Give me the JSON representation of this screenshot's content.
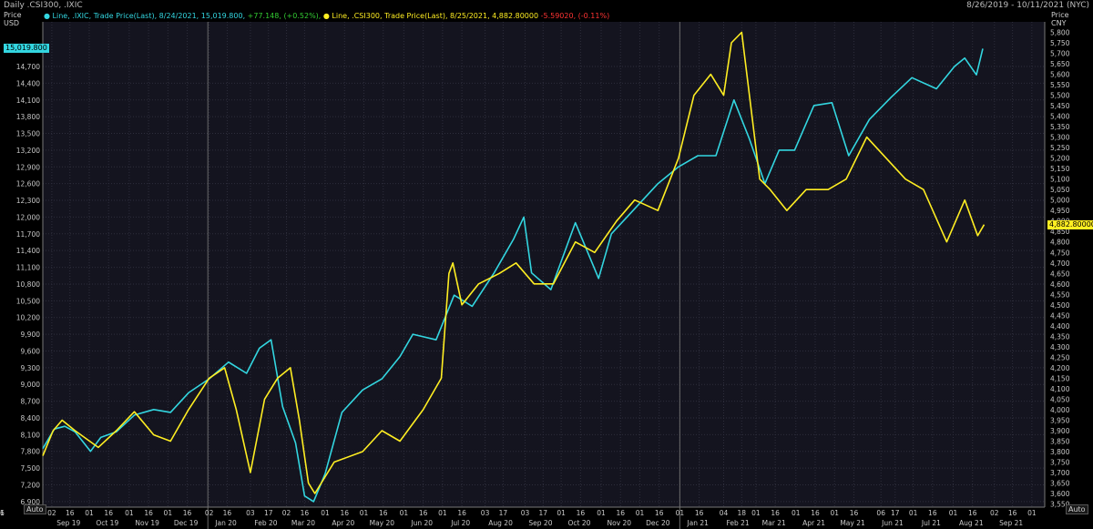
{
  "header": {
    "title": "Daily .CSI300, .IXIC",
    "date_range": "8/26/2019 - 10/11/2021 (NYC)"
  },
  "legend": {
    "ixic": {
      "prefix": "Line, .IXIC, Trade Price(Last), 8/24/2021, 15,019.800,",
      "change": "+77.148, (+0.52%),",
      "color": "#33d6e0",
      "change_color": "#33cc33"
    },
    "csi": {
      "prefix": "Line, .CSI300, Trade Price(Last), 8/25/2021, 4,882.80000",
      "change": "-5.59020, (-0.11%)",
      "color": "#ffee22",
      "change_color": "#ff3333"
    }
  },
  "left_axis": {
    "label_line1": "Price",
    "label_line2": "USD",
    "last_value": "15,019.800"
  },
  "right_axis": {
    "label_line1": "Price",
    "label_line2": "CNY",
    "last_value": "4,882.80000"
  },
  "auto_button": "Auto",
  "chart_data": {
    "type": "line",
    "x_start": "2019-08-26",
    "x_end": "2021-10-11",
    "left_ylim": [
      6800,
      15500
    ],
    "right_ylim": [
      3535,
      5850
    ],
    "left_ticks": [
      "6,900",
      "7,200",
      "7,500",
      "7,800",
      "8,100",
      "8,400",
      "8,700",
      "9,000",
      "9,300",
      "9,600",
      "9,900",
      "10,200",
      "10,500",
      "10,800",
      "11,100",
      "11,400",
      "11,700",
      "12,000",
      "12,300",
      "12,600",
      "12,900",
      "13,200",
      "13,500",
      "13,800",
      "14,100",
      "14,400",
      "14,700"
    ],
    "left_tick_values": [
      6900,
      7200,
      7500,
      7800,
      8100,
      8400,
      8700,
      9000,
      9300,
      9600,
      9900,
      10200,
      10500,
      10800,
      11100,
      11400,
      11700,
      12000,
      12300,
      12600,
      12900,
      13200,
      13500,
      13800,
      14100,
      14400,
      14700
    ],
    "right_tick_values": [
      3550,
      3600,
      3650,
      3700,
      3750,
      3800,
      3850,
      3900,
      3950,
      4000,
      4050,
      4100,
      4150,
      4200,
      4250,
      4300,
      4350,
      4400,
      4450,
      4500,
      4550,
      4600,
      4650,
      4700,
      4750,
      4800,
      4850,
      4900,
      4950,
      5000,
      5050,
      5100,
      5150,
      5200,
      5250,
      5300,
      5350,
      5400,
      5450,
      5500,
      5550,
      5600,
      5650,
      5700,
      5750,
      5800
    ],
    "right_ticks": [
      "3,550",
      "3,600",
      "3,650",
      "3,700",
      "3,750",
      "3,800",
      "3,850",
      "3,900",
      "3,950",
      "4,000",
      "4,050",
      "4,100",
      "4,150",
      "4,200",
      "4,250",
      "4,300",
      "4,350",
      "4,400",
      "4,450",
      "4,500",
      "4,550",
      "4,600",
      "4,650",
      "4,700",
      "4,750",
      "4,800",
      "4,850",
      "4,900",
      "4,950",
      "5,000",
      "5,050",
      "5,100",
      "5,150",
      "5,200",
      "5,250",
      "5,300",
      "5,350",
      "5,400",
      "5,450",
      "5,500",
      "5,550",
      "5,600",
      "5,650",
      "5,700",
      "5,750",
      "5,800"
    ],
    "day_ticks": [
      "02",
      "16",
      "01",
      "16",
      "01",
      "16",
      "01",
      "16",
      "02",
      "16",
      "03",
      "17",
      "02",
      "16",
      "01",
      "16",
      "01",
      "16",
      "01",
      "16",
      "01",
      "16",
      "03",
      "17",
      "03",
      "17",
      "01",
      "16",
      "01",
      "16",
      "01",
      "16",
      "01",
      "16",
      "04",
      "18",
      "01",
      "16",
      "01",
      "16",
      "01",
      "16",
      "06",
      "17",
      "01",
      "16",
      "01",
      "16",
      "02",
      "16",
      "01",
      "16",
      "01",
      "16"
    ],
    "day_tick_dates": [
      "2019-09-02",
      "2019-09-16",
      "2019-10-01",
      "2019-10-16",
      "2019-11-01",
      "2019-11-16",
      "2019-12-01",
      "2019-12-16",
      "2020-01-02",
      "2020-01-16",
      "2020-02-03",
      "2020-02-17",
      "2020-03-02",
      "2020-03-16",
      "2020-04-01",
      "2020-04-16",
      "2020-05-01",
      "2020-05-16",
      "2020-06-01",
      "2020-06-16",
      "2020-07-01",
      "2020-07-16",
      "2020-08-03",
      "2020-08-17",
      "2020-09-03",
      "2020-09-17",
      "2020-10-01",
      "2020-10-16",
      "2020-11-01",
      "2020-11-16",
      "2020-12-01",
      "2020-12-16",
      "2021-01-01",
      "2021-01-16",
      "2021-02-04",
      "2021-02-18",
      "2021-03-01",
      "2021-03-16",
      "2021-04-01",
      "2021-04-16",
      "2021-05-01",
      "2021-05-16",
      "2021-06-06",
      "2021-06-17",
      "2021-07-01",
      "2021-07-16",
      "2021-08-01",
      "2021-08-16",
      "2021-09-02",
      "2021-09-16",
      "2021-10-01",
      "2021-10-16"
    ],
    "month_labels": [
      "Sep 19",
      "Oct 19",
      "Nov 19",
      "Dec 19",
      "Jan 20",
      "Feb 20",
      "Mar 20",
      "Apr 20",
      "May 20",
      "Jun 20",
      "Jul 20",
      "Aug 20",
      "Sep 20",
      "Oct 20",
      "Nov 20",
      "Dec 20",
      "Jan 21",
      "Feb 21",
      "Mar 21",
      "Apr 21",
      "May 21",
      "Jun 21",
      "Jul 21",
      "Aug 21",
      "Sep 21"
    ],
    "month_label_dates": [
      "2019-09-15",
      "2019-10-15",
      "2019-11-15",
      "2019-12-15",
      "2020-01-15",
      "2020-02-15",
      "2020-03-15",
      "2020-04-15",
      "2020-05-15",
      "2020-06-15",
      "2020-07-15",
      "2020-08-15",
      "2020-09-15",
      "2020-10-15",
      "2020-11-15",
      "2020-12-15",
      "2021-01-15",
      "2021-02-15",
      "2021-03-15",
      "2021-04-15",
      "2021-05-15",
      "2021-06-15",
      "2021-07-15",
      "2021-08-15",
      "2021-09-15"
    ],
    "year_separator_dates": [
      "2020-01-01",
      "2021-01-01"
    ],
    "series": [
      {
        "name": ".IXIC",
        "axis": "left",
        "color": "#33d6e0",
        "points": [
          [
            "2019-08-26",
            7850
          ],
          [
            "2019-09-04",
            8200
          ],
          [
            "2019-09-12",
            8250
          ],
          [
            "2019-09-20",
            8150
          ],
          [
            "2019-10-02",
            7800
          ],
          [
            "2019-10-10",
            8050
          ],
          [
            "2019-10-22",
            8150
          ],
          [
            "2019-11-05",
            8450
          ],
          [
            "2019-11-20",
            8550
          ],
          [
            "2019-12-03",
            8500
          ],
          [
            "2019-12-17",
            8850
          ],
          [
            "2020-01-02",
            9100
          ],
          [
            "2020-01-17",
            9400
          ],
          [
            "2020-01-31",
            9200
          ],
          [
            "2020-02-10",
            9650
          ],
          [
            "2020-02-19",
            9800
          ],
          [
            "2020-02-28",
            8600
          ],
          [
            "2020-03-09",
            7950
          ],
          [
            "2020-03-16",
            7000
          ],
          [
            "2020-03-23",
            6900
          ],
          [
            "2020-04-01",
            7400
          ],
          [
            "2020-04-14",
            8500
          ],
          [
            "2020-04-30",
            8900
          ],
          [
            "2020-05-15",
            9100
          ],
          [
            "2020-05-29",
            9500
          ],
          [
            "2020-06-08",
            9900
          ],
          [
            "2020-06-26",
            9800
          ],
          [
            "2020-07-10",
            10600
          ],
          [
            "2020-07-24",
            10400
          ],
          [
            "2020-08-10",
            11000
          ],
          [
            "2020-08-25",
            11600
          ],
          [
            "2020-09-02",
            12000
          ],
          [
            "2020-09-08",
            11000
          ],
          [
            "2020-09-23",
            10700
          ],
          [
            "2020-10-12",
            11900
          ],
          [
            "2020-10-30",
            10900
          ],
          [
            "2020-11-09",
            11700
          ],
          [
            "2020-11-25",
            12100
          ],
          [
            "2020-12-15",
            12600
          ],
          [
            "2020-12-31",
            12900
          ],
          [
            "2021-01-15",
            13100
          ],
          [
            "2021-01-29",
            13100
          ],
          [
            "2021-02-12",
            14100
          ],
          [
            "2021-02-24",
            13400
          ],
          [
            "2021-03-08",
            12600
          ],
          [
            "2021-03-19",
            13200
          ],
          [
            "2021-03-31",
            13200
          ],
          [
            "2021-04-15",
            14000
          ],
          [
            "2021-04-29",
            14050
          ],
          [
            "2021-05-12",
            13100
          ],
          [
            "2021-05-28",
            13750
          ],
          [
            "2021-06-14",
            14150
          ],
          [
            "2021-06-30",
            14500
          ],
          [
            "2021-07-19",
            14300
          ],
          [
            "2021-08-02",
            14700
          ],
          [
            "2021-08-10",
            14850
          ],
          [
            "2021-08-19",
            14550
          ],
          [
            "2021-08-24",
            15019.8
          ]
        ]
      },
      {
        "name": ".CSI300",
        "axis": "right",
        "color": "#ffee22",
        "points": [
          [
            "2019-08-26",
            3780
          ],
          [
            "2019-09-03",
            3900
          ],
          [
            "2019-09-10",
            3950
          ],
          [
            "2019-09-20",
            3900
          ],
          [
            "2019-10-08",
            3820
          ],
          [
            "2019-10-22",
            3900
          ],
          [
            "2019-11-05",
            3990
          ],
          [
            "2019-11-20",
            3880
          ],
          [
            "2019-12-03",
            3850
          ],
          [
            "2019-12-17",
            4000
          ],
          [
            "2020-01-02",
            4150
          ],
          [
            "2020-01-14",
            4200
          ],
          [
            "2020-01-23",
            4000
          ],
          [
            "2020-02-03",
            3700
          ],
          [
            "2020-02-14",
            4050
          ],
          [
            "2020-02-24",
            4150
          ],
          [
            "2020-03-05",
            4200
          ],
          [
            "2020-03-12",
            3950
          ],
          [
            "2020-03-19",
            3650
          ],
          [
            "2020-03-24",
            3600
          ],
          [
            "2020-04-08",
            3750
          ],
          [
            "2020-04-30",
            3800
          ],
          [
            "2020-05-15",
            3900
          ],
          [
            "2020-05-29",
            3850
          ],
          [
            "2020-06-16",
            4000
          ],
          [
            "2020-06-30",
            4150
          ],
          [
            "2020-07-06",
            4650
          ],
          [
            "2020-07-09",
            4700
          ],
          [
            "2020-07-16",
            4500
          ],
          [
            "2020-07-29",
            4600
          ],
          [
            "2020-08-14",
            4650
          ],
          [
            "2020-08-27",
            4700
          ],
          [
            "2020-09-10",
            4600
          ],
          [
            "2020-09-25",
            4600
          ],
          [
            "2020-10-12",
            4800
          ],
          [
            "2020-10-27",
            4750
          ],
          [
            "2020-11-13",
            4900
          ],
          [
            "2020-11-27",
            5000
          ],
          [
            "2020-12-15",
            4950
          ],
          [
            "2020-12-31",
            5200
          ],
          [
            "2021-01-12",
            5500
          ],
          [
            "2021-01-25",
            5600
          ],
          [
            "2021-02-04",
            5500
          ],
          [
            "2021-02-10",
            5750
          ],
          [
            "2021-02-18",
            5800
          ],
          [
            "2021-03-04",
            5100
          ],
          [
            "2021-03-12",
            5050
          ],
          [
            "2021-03-25",
            4950
          ],
          [
            "2021-04-09",
            5050
          ],
          [
            "2021-04-26",
            5050
          ],
          [
            "2021-05-10",
            5100
          ],
          [
            "2021-05-26",
            5300
          ],
          [
            "2021-06-10",
            5200
          ],
          [
            "2021-06-25",
            5100
          ],
          [
            "2021-07-09",
            5050
          ],
          [
            "2021-07-27",
            4800
          ],
          [
            "2021-08-10",
            5000
          ],
          [
            "2021-08-20",
            4830
          ],
          [
            "2021-08-25",
            4882.8
          ]
        ]
      }
    ]
  }
}
